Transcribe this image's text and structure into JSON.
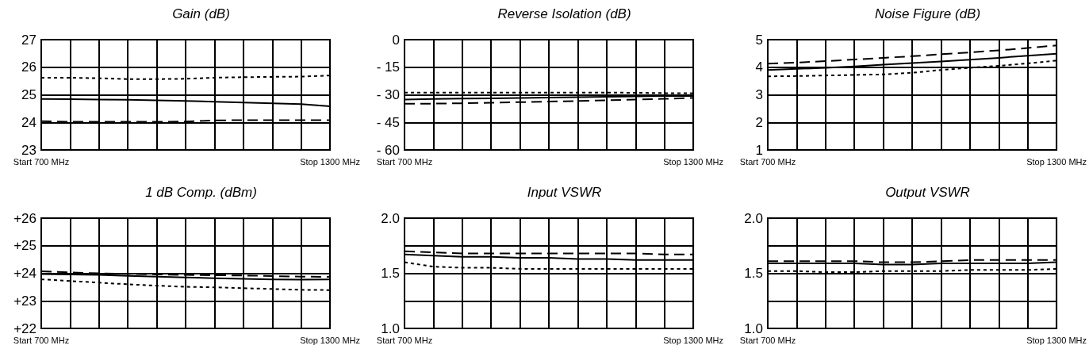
{
  "chart_data": [
    {
      "type": "line",
      "title": "Gain (dB)",
      "categories": [
        "Start 700 MHz",
        null,
        null,
        null,
        null,
        null,
        null,
        null,
        null,
        null,
        "Stop 1300 MHz"
      ],
      "ylim": [
        23,
        27
      ],
      "yticks": [
        23,
        24,
        25,
        26,
        27
      ],
      "grid": true,
      "marker": "none",
      "series": [
        {
          "color": "#000000",
          "line_style": "dotted",
          "values": [
            25.62,
            25.62,
            25.6,
            25.57,
            25.57,
            25.58,
            25.62,
            25.64,
            25.65,
            25.66,
            25.7
          ]
        },
        {
          "color": "#000000",
          "line_style": "solid",
          "values": [
            24.85,
            24.84,
            24.83,
            24.82,
            24.8,
            24.78,
            24.75,
            24.72,
            24.69,
            24.66,
            24.58
          ]
        },
        {
          "color": "#000000",
          "line_style": "dashed",
          "values": [
            24.04,
            24.02,
            24.02,
            24.02,
            24.02,
            24.03,
            24.07,
            24.08,
            24.08,
            24.08,
            24.08
          ]
        }
      ]
    },
    {
      "type": "line",
      "title": "Reverse Isolation (dB)",
      "categories": [
        "Start 700 MHz",
        null,
        null,
        null,
        null,
        null,
        null,
        null,
        null,
        null,
        "Stop 1300 MHz"
      ],
      "ylim": [
        -60,
        0
      ],
      "yticks": [
        {
          "value": -60,
          "label": "- 60"
        },
        {
          "value": -45,
          "label": "- 45"
        },
        {
          "value": -30,
          "label": "- 30"
        },
        {
          "value": -15,
          "label": "- 15"
        },
        0
      ],
      "grid": true,
      "marker": "none",
      "series": [
        {
          "color": "#000000",
          "line_style": "dotted",
          "values": [
            -28.8,
            -28.8,
            -28.8,
            -28.8,
            -28.8,
            -28.8,
            -28.8,
            -28.8,
            -28.9,
            -29.1,
            -29.2
          ]
        },
        {
          "color": "#000000",
          "line_style": "solid",
          "values": [
            -32.6,
            -32.3,
            -32.1,
            -31.9,
            -31.7,
            -31.5,
            -31.3,
            -31.1,
            -30.9,
            -30.7,
            -30.6
          ]
        },
        {
          "color": "#000000",
          "line_style": "dashed",
          "values": [
            -34.9,
            -34.8,
            -34.6,
            -34.3,
            -34,
            -33.7,
            -33.4,
            -33,
            -32.6,
            -32.2,
            -31.7
          ]
        }
      ]
    },
    {
      "type": "line",
      "title": "Noise Figure (dB)",
      "categories": [
        "Start 700 MHz",
        null,
        null,
        null,
        null,
        null,
        null,
        null,
        null,
        null,
        "Stop 1300 MHz"
      ],
      "ylim": [
        1,
        5
      ],
      "yticks": [
        1,
        2,
        3,
        4,
        5
      ],
      "grid": true,
      "marker": "none",
      "series": [
        {
          "color": "#000000",
          "line_style": "dashed",
          "values": [
            4.13,
            4.17,
            4.22,
            4.28,
            4.34,
            4.4,
            4.47,
            4.54,
            4.61,
            4.7,
            4.79
          ]
        },
        {
          "color": "#000000",
          "line_style": "solid",
          "values": [
            3.9,
            3.94,
            3.98,
            4.03,
            4.09,
            4.15,
            4.21,
            4.27,
            4.34,
            4.42,
            4.49
          ]
        },
        {
          "color": "#000000",
          "line_style": "dotted",
          "values": [
            3.67,
            3.68,
            3.7,
            3.72,
            3.74,
            3.8,
            3.9,
            3.98,
            4.05,
            4.14,
            4.24
          ]
        }
      ]
    },
    {
      "type": "line",
      "title": "1 dB Comp. (dBm)",
      "categories": [
        "Start 700 MHz",
        null,
        null,
        null,
        null,
        null,
        null,
        null,
        null,
        null,
        "Stop 1300 MHz"
      ],
      "ylim": [
        22,
        26
      ],
      "yticks": [
        {
          "value": 22,
          "label": "+22"
        },
        {
          "value": 23,
          "label": "+23"
        },
        {
          "value": 24,
          "label": "+24"
        },
        {
          "value": 25,
          "label": "+25"
        },
        {
          "value": 26,
          "label": "+26"
        }
      ],
      "grid": true,
      "marker": "none",
      "series": [
        {
          "color": "#000000",
          "line_style": "dashed",
          "values": [
            24.07,
            24.03,
            24.0,
            23.98,
            23.96,
            23.94,
            23.93,
            23.92,
            23.9,
            23.88,
            23.87
          ]
        },
        {
          "color": "#000000",
          "line_style": "solid",
          "values": [
            23.97,
            23.96,
            23.94,
            23.91,
            23.88,
            23.85,
            23.82,
            23.8,
            23.78,
            23.77,
            23.78
          ]
        },
        {
          "color": "#000000",
          "line_style": "dotted",
          "values": [
            23.78,
            23.72,
            23.66,
            23.6,
            23.55,
            23.51,
            23.49,
            23.46,
            23.43,
            23.4,
            23.39
          ]
        }
      ]
    },
    {
      "type": "line",
      "title": "Input VSWR",
      "categories": [
        "Start 700 MHz",
        null,
        null,
        null,
        null,
        null,
        null,
        null,
        null,
        null,
        "Stop 1300 MHz"
      ],
      "ylim": [
        1.0,
        2.0
      ],
      "yticks": [
        {
          "value": 1.0,
          "label": "1.0"
        },
        {
          "value": 1.25,
          "label": null
        },
        {
          "value": 1.5,
          "label": "1.5"
        },
        {
          "value": 1.75,
          "label": null
        },
        {
          "value": 2.0,
          "label": "2.0"
        }
      ],
      "grid": true,
      "marker": "none",
      "series": [
        {
          "color": "#000000",
          "line_style": "dashed",
          "values": [
            1.7,
            1.69,
            1.68,
            1.68,
            1.68,
            1.68,
            1.68,
            1.68,
            1.68,
            1.67,
            1.67
          ]
        },
        {
          "color": "#000000",
          "line_style": "solid",
          "values": [
            1.67,
            1.66,
            1.65,
            1.65,
            1.64,
            1.64,
            1.63,
            1.63,
            1.62,
            1.62,
            1.62
          ]
        },
        {
          "color": "#000000",
          "line_style": "dotted",
          "values": [
            1.6,
            1.56,
            1.55,
            1.55,
            1.54,
            1.54,
            1.54,
            1.54,
            1.54,
            1.54,
            1.54
          ]
        }
      ]
    },
    {
      "type": "line",
      "title": "Output VSWR",
      "categories": [
        "Start 700 MHz",
        null,
        null,
        null,
        null,
        null,
        null,
        null,
        null,
        null,
        "Stop 1300 MHz"
      ],
      "ylim": [
        1.0,
        2.0
      ],
      "yticks": [
        {
          "value": 1.0,
          "label": "1.0"
        },
        {
          "value": 1.25,
          "label": null
        },
        {
          "value": 1.5,
          "label": "1.5"
        },
        {
          "value": 1.75,
          "label": null
        },
        {
          "value": 2.0,
          "label": "2.0"
        }
      ],
      "grid": true,
      "marker": "none",
      "series": [
        {
          "color": "#000000",
          "line_style": "dashed",
          "values": [
            1.61,
            1.61,
            1.61,
            1.61,
            1.6,
            1.6,
            1.61,
            1.62,
            1.62,
            1.62,
            1.62
          ]
        },
        {
          "color": "#000000",
          "line_style": "solid",
          "values": [
            1.59,
            1.59,
            1.59,
            1.59,
            1.58,
            1.58,
            1.59,
            1.59,
            1.59,
            1.59,
            1.6
          ]
        },
        {
          "color": "#000000",
          "line_style": "dotted",
          "values": [
            1.52,
            1.52,
            1.51,
            1.51,
            1.52,
            1.52,
            1.52,
            1.53,
            1.53,
            1.53,
            1.54
          ]
        }
      ]
    }
  ]
}
